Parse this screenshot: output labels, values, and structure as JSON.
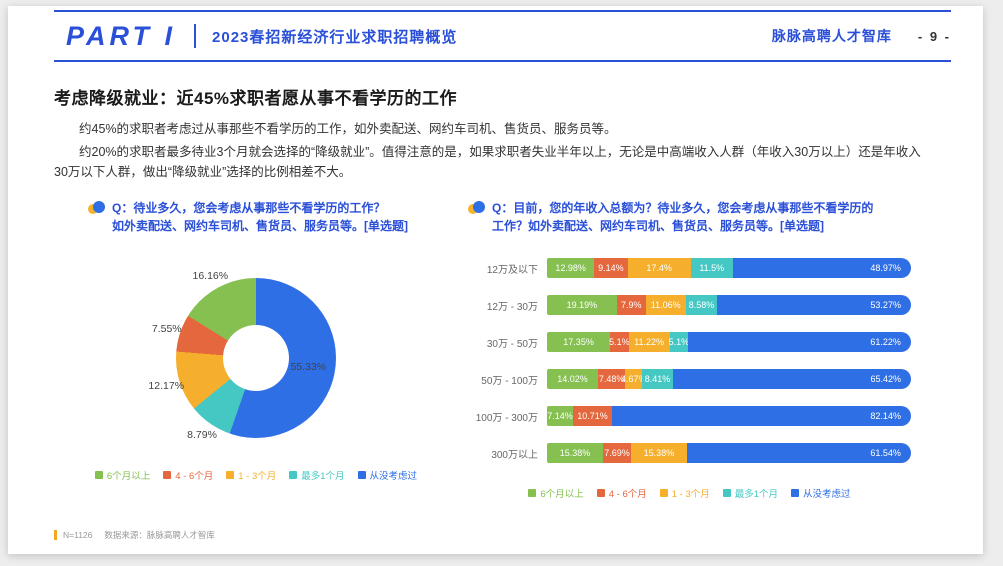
{
  "header": {
    "part_label": "PART I",
    "subtitle": "2023春招新经济行业求职招聘概览",
    "brand": "脉脉高聘人才智库",
    "page_number": "- 9 -"
  },
  "section": {
    "title": "考虑降级就业：近45%求职者愿从事不看学历的工作",
    "paragraph1": "约45%的求职者考虑过从事那些不看学历的工作，如外卖配送、网约车司机、售货员、服务员等。",
    "paragraph2": "约20%的求职者最多待业3个月就会选择的“降级就业”。值得注意的是，如果求职者失业半年以上，无论是中高端收入人群（年收入30万以上）还是年收入30万以下人群，做出“降级就业”选择的比例相差不大。"
  },
  "footer": {
    "sample": "N=1126",
    "source": "数据来源：脉脉高聘人才智库"
  },
  "colors": {
    "accent": "#2b50d8",
    "footer_marker": "#f5a623",
    "green": "#85c051",
    "red": "#e5673e",
    "yellow": "#f5af2c",
    "teal": "#45c8c3",
    "blue": "#2f6fe6"
  },
  "chart_data": [
    {
      "type": "pie",
      "donut": true,
      "title": "Q：待业多久，您会考虑从事那些不看学历的工作？如外卖配送、网约车司机、售货员、服务员等。[单选题]",
      "title_lines": [
        "Q：待业多久，您会考虑从事那些不看学历的工作？",
        "如外卖配送、网约车司机、售货员、服务员等。[单选题]"
      ],
      "slices": [
        {
          "label": "从没考虑过",
          "value": 55.33,
          "color": "#2f6fe6"
        },
        {
          "label": "最多1个月",
          "value": 8.79,
          "color": "#45c8c3"
        },
        {
          "label": "1 - 3个月",
          "value": 12.17,
          "color": "#f5af2c"
        },
        {
          "label": "4 - 6个月",
          "value": 7.55,
          "color": "#e5673e"
        },
        {
          "label": "6个月以上",
          "value": 16.16,
          "color": "#85c051"
        }
      ],
      "legend_order": [
        "6个月以上",
        "4 - 6个月",
        "1 - 3个月",
        "最多1个月",
        "从没考虑过"
      ],
      "legend_position": "bottom"
    },
    {
      "type": "bar",
      "stacked": true,
      "orientation": "horizontal",
      "title": "Q：目前，您的年收入总额为？待业多久，您会考虑从事那些不看学历的工作？如外卖配送、网约车司机、售货员、服务员等。[单选题]",
      "title_lines": [
        "Q：目前，您的年收入总额为？待业多久，您会考虑从事那些不看学历的",
        "工作？如外卖配送、网约车司机、售货员、服务员等。[单选题]"
      ],
      "categories": [
        "12万及以下",
        "12万 - 30万",
        "30万 - 50万",
        "50万 - 100万",
        "100万 - 300万",
        "300万以上"
      ],
      "xlim": [
        0,
        100
      ],
      "series": [
        {
          "name": "6个月以上",
          "color": "#85c051",
          "values": [
            12.98,
            19.19,
            17.35,
            14.02,
            7.14,
            15.38
          ]
        },
        {
          "name": "4 - 6个月",
          "color": "#e5673e",
          "values": [
            9.14,
            7.9,
            5.1,
            7.48,
            10.71,
            7.69
          ]
        },
        {
          "name": "1 - 3个月",
          "color": "#f5af2c",
          "values": [
            17.4,
            11.06,
            11.22,
            4.67,
            0,
            15.38
          ]
        },
        {
          "name": "最多1个月",
          "color": "#45c8c3",
          "values": [
            11.5,
            8.58,
            5.1,
            8.41,
            0,
            0
          ]
        },
        {
          "name": "从没考虑过",
          "color": "#2f6fe6",
          "values": [
            48.97,
            53.27,
            61.22,
            65.42,
            82.14,
            61.54
          ]
        }
      ],
      "legend_position": "bottom"
    }
  ]
}
